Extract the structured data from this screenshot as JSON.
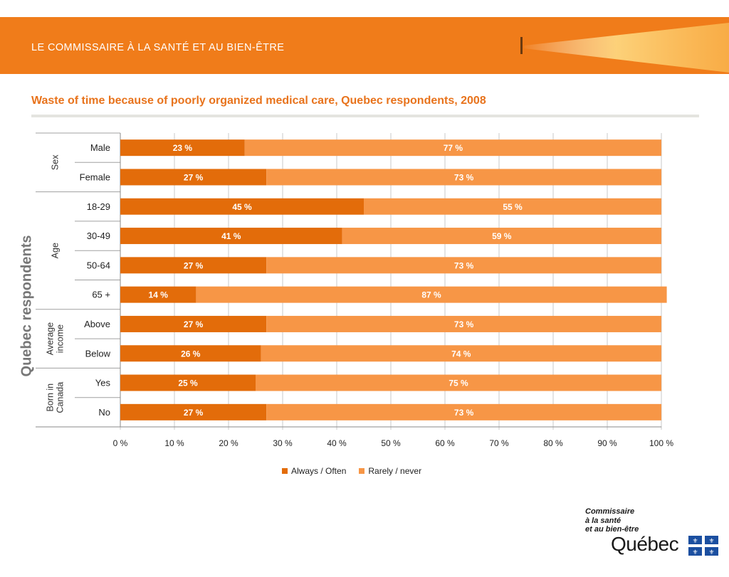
{
  "banner": {
    "title": "LE COMMISSAIRE À LA SANTÉ ET AU BIEN-ÊTRE"
  },
  "slide_title": "Waste of time because of poorly organized medical care, Quebec respondents, 2008",
  "logo": {
    "line1": "Commissaire",
    "line2": "à la santé",
    "line3": "et au bien-être",
    "wordmark": "Québec"
  },
  "colors": {
    "banner": "#f07c1a",
    "series_always": "#e36c0a",
    "series_rarely": "#f79646",
    "title": "#e8731c"
  },
  "chart_data": {
    "type": "bar",
    "orientation": "horizontal",
    "stacked": true,
    "ylabel": "Quebec respondents",
    "xlim": [
      0,
      100
    ],
    "xticks": [
      "0 %",
      "10 %",
      "20 %",
      "30 %",
      "40 %",
      "50 %",
      "60 %",
      "70 %",
      "80 %",
      "90 %",
      "100 %"
    ],
    "grid": true,
    "legend_position": "bottom",
    "groups": [
      {
        "label": [
          "Sex"
        ],
        "categories": [
          "Male",
          "Female"
        ]
      },
      {
        "label": [
          "Age"
        ],
        "categories": [
          "18-29",
          "30-49",
          "50-64",
          "65 +"
        ]
      },
      {
        "label": [
          "Average",
          "income"
        ],
        "categories": [
          "Above",
          "Below"
        ]
      },
      {
        "label": [
          "Born in",
          "Canada"
        ],
        "categories": [
          "Yes",
          "No"
        ]
      }
    ],
    "categories": [
      "Male",
      "Female",
      "18-29",
      "30-49",
      "50-64",
      "65 +",
      "Above",
      "Below",
      "Yes",
      "No"
    ],
    "series": [
      {
        "name": "Always / Often",
        "values": [
          23,
          27,
          45,
          41,
          27,
          14,
          27,
          26,
          25,
          27
        ],
        "labels": [
          "23 %",
          "27 %",
          "45 %",
          "41 %",
          "27 %",
          "14 %",
          "27 %",
          "26 %",
          "25 %",
          "27 %"
        ]
      },
      {
        "name": "Rarely / never",
        "values": [
          77,
          73,
          55,
          59,
          73,
          87,
          73,
          74,
          75,
          73
        ],
        "labels": [
          "77 %",
          "73 %",
          "55 %",
          "59 %",
          "73 %",
          "87 %",
          "73 %",
          "74 %",
          "75 %",
          "73 %"
        ]
      }
    ]
  }
}
